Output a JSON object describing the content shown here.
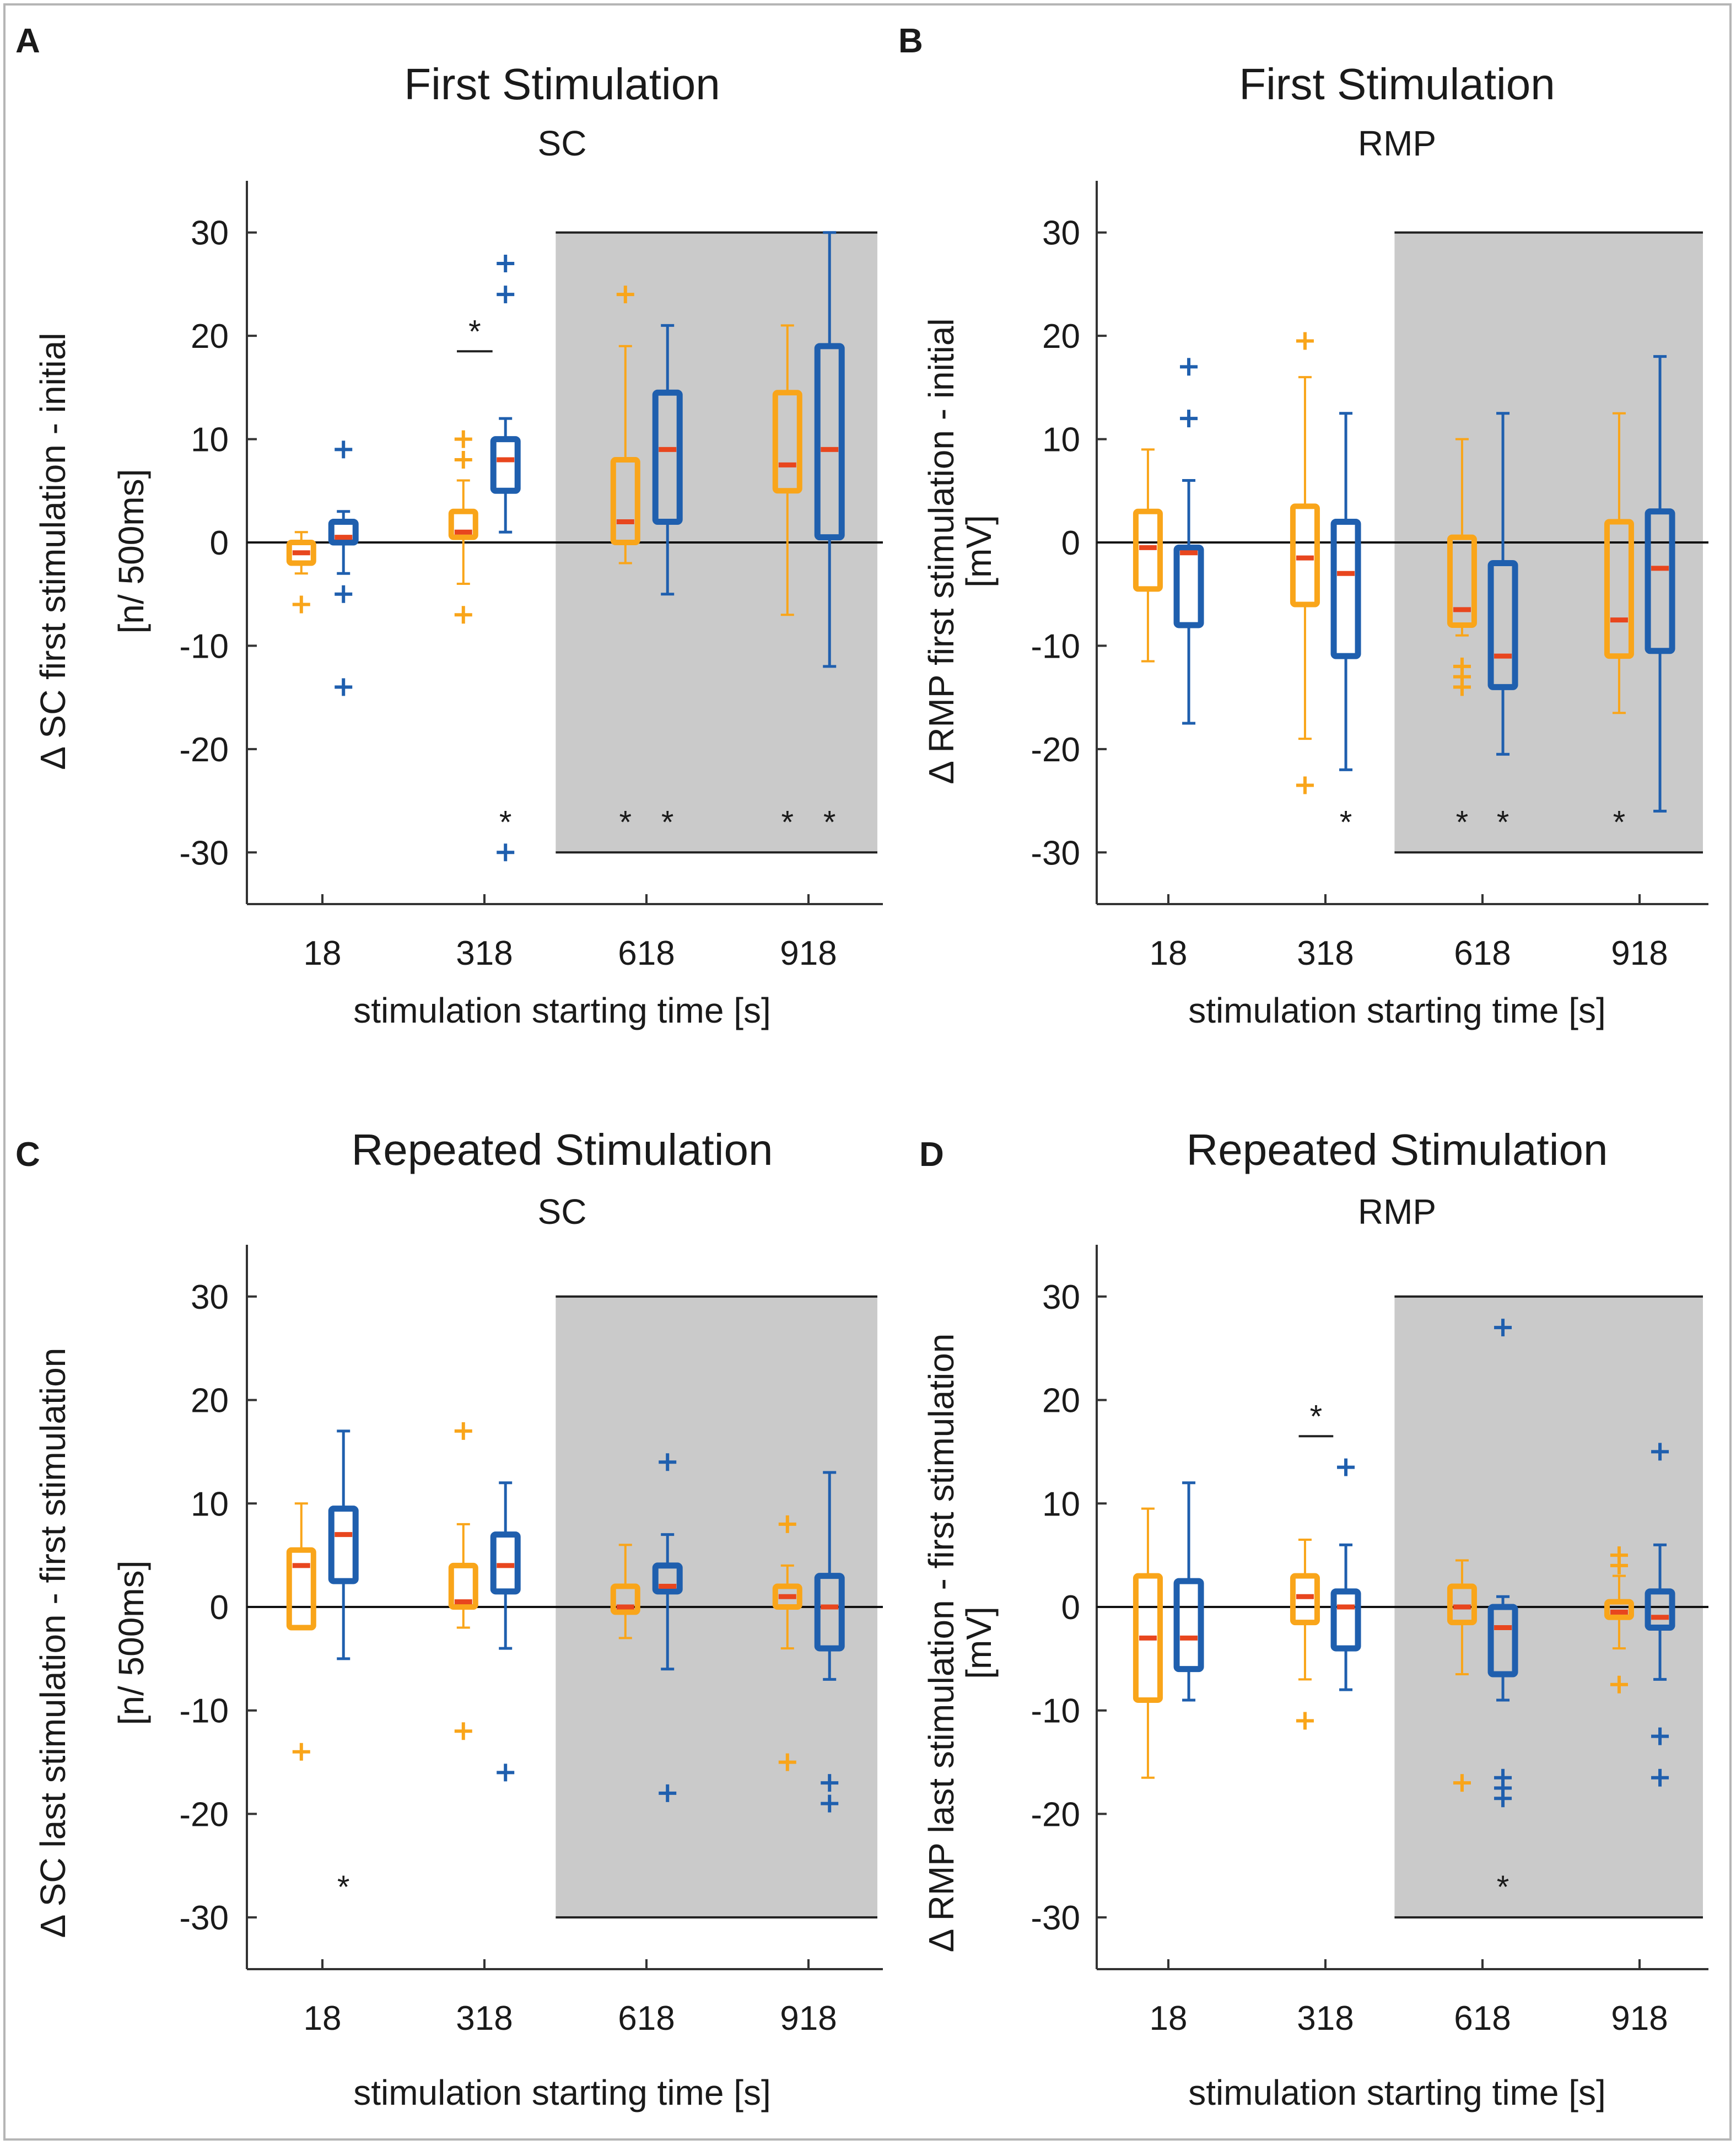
{
  "colors": {
    "orange": "#F9A51A",
    "blue": "#1F5FAE",
    "median": "#E8461E",
    "shade": "#CACACA",
    "axis": "#333333",
    "text": "#1a1a1a"
  },
  "chart_data": [
    {
      "panel": "A",
      "type": "box",
      "title": "First Stimulation",
      "subtitle": "SC",
      "ylabel": "Δ SC first stimulation - initial",
      "ylabel2": "[n/ 500ms]",
      "xlabel": "stimulation starting time [s]",
      "categories": [
        "18",
        "318",
        "618",
        "918"
      ],
      "yticks": [
        30,
        20,
        10,
        0,
        -10,
        -20,
        -30
      ],
      "ylim": [
        -35,
        35
      ],
      "shaded_from_category": "618",
      "series": [
        {
          "name": "orange",
          "boxes": [
            {
              "q1": -2,
              "median": -1,
              "q3": 0,
              "whisker_low": -3,
              "whisker_high": 1,
              "outliers": [
                -6
              ]
            },
            {
              "q1": 0.5,
              "median": 1,
              "q3": 3,
              "whisker_low": -4,
              "whisker_high": 6,
              "outliers": [
                8,
                10,
                -7
              ]
            },
            {
              "q1": 0,
              "median": 2,
              "q3": 8,
              "whisker_low": -2,
              "whisker_high": 19,
              "outliers": [
                24
              ]
            },
            {
              "q1": 5,
              "median": 7.5,
              "q3": 14.5,
              "whisker_low": -7,
              "whisker_high": 21,
              "outliers": []
            }
          ]
        },
        {
          "name": "blue",
          "boxes": [
            {
              "q1": 0,
              "median": 0.5,
              "q3": 2,
              "whisker_low": -3,
              "whisker_high": 3,
              "outliers": [
                9,
                -5,
                -14
              ]
            },
            {
              "q1": 5,
              "median": 8,
              "q3": 10,
              "whisker_low": 1,
              "whisker_high": 12,
              "outliers": [
                27,
                24,
                -30
              ]
            },
            {
              "q1": 2,
              "median": 9,
              "q3": 14.5,
              "whisker_low": -5,
              "whisker_high": 21,
              "outliers": []
            },
            {
              "q1": 0.5,
              "median": 9,
              "q3": 19,
              "whisker_low": -12,
              "whisker_high": 30,
              "outliers": []
            }
          ]
        }
      ],
      "significance": [
        {
          "label": "*",
          "type": "bracket",
          "category": "318",
          "y": 18.5
        },
        {
          "label": "*",
          "category": "318",
          "series": "blue",
          "y": -26
        },
        {
          "label": "*",
          "category": "618",
          "series": "orange",
          "y": -26
        },
        {
          "label": "*",
          "category": "618",
          "series": "blue",
          "y": -26
        },
        {
          "label": "*",
          "category": "918",
          "series": "orange",
          "y": -26
        },
        {
          "label": "*",
          "category": "918",
          "series": "blue",
          "y": -26
        }
      ]
    },
    {
      "panel": "B",
      "type": "box",
      "title": "First Stimulation",
      "subtitle": "RMP",
      "ylabel": "Δ RMP first stimulation - initial",
      "ylabel2": "[mV]",
      "xlabel": "stimulation starting time [s]",
      "categories": [
        "18",
        "318",
        "618",
        "918"
      ],
      "yticks": [
        30,
        20,
        10,
        0,
        -10,
        -20,
        -30
      ],
      "ylim": [
        -35,
        35
      ],
      "shaded_from_category": "618",
      "series": [
        {
          "name": "orange",
          "boxes": [
            {
              "q1": -4.5,
              "median": -0.5,
              "q3": 3,
              "whisker_low": -11.5,
              "whisker_high": 9,
              "outliers": []
            },
            {
              "q1": -6,
              "median": -1.5,
              "q3": 3.5,
              "whisker_low": -19,
              "whisker_high": 16,
              "outliers": [
                19.5,
                -23.5
              ]
            },
            {
              "q1": -8,
              "median": -6.5,
              "q3": 0.5,
              "whisker_low": -9,
              "whisker_high": 10,
              "outliers": [
                -12,
                -13,
                -14
              ]
            },
            {
              "q1": -11,
              "median": -7.5,
              "q3": 2,
              "whisker_low": -16.5,
              "whisker_high": 12.5,
              "outliers": []
            }
          ]
        },
        {
          "name": "blue",
          "boxes": [
            {
              "q1": -8,
              "median": -1,
              "q3": -0.5,
              "whisker_low": -17.5,
              "whisker_high": 6,
              "outliers": [
                17,
                12
              ]
            },
            {
              "q1": -11,
              "median": -3,
              "q3": 2,
              "whisker_low": -22,
              "whisker_high": 12.5,
              "outliers": []
            },
            {
              "q1": -14,
              "median": -11,
              "q3": -2,
              "whisker_low": -20.5,
              "whisker_high": 12.5,
              "outliers": []
            },
            {
              "q1": -10.5,
              "median": -2.5,
              "q3": 3,
              "whisker_low": -26,
              "whisker_high": 18,
              "outliers": []
            }
          ]
        }
      ],
      "significance": [
        {
          "label": "*",
          "category": "318",
          "series": "blue",
          "y": -26
        },
        {
          "label": "*",
          "category": "618",
          "series": "orange",
          "y": -26
        },
        {
          "label": "*",
          "category": "618",
          "series": "blue",
          "y": -26
        },
        {
          "label": "*",
          "category": "918",
          "series": "orange",
          "y": -26
        }
      ]
    },
    {
      "panel": "C",
      "type": "box",
      "title": "Repeated Stimulation",
      "subtitle": "SC",
      "ylabel": "Δ SC last stimulation - first stimulation",
      "ylabel2": "[n/ 500ms]",
      "xlabel": "stimulation starting time [s]",
      "categories": [
        "18",
        "318",
        "618",
        "918"
      ],
      "yticks": [
        30,
        20,
        10,
        0,
        -10,
        -20,
        -30
      ],
      "ylim": [
        -35,
        35
      ],
      "shaded_from_category": "618",
      "series": [
        {
          "name": "orange",
          "boxes": [
            {
              "q1": -2,
              "median": 4,
              "q3": 5.5,
              "whisker_low": -2,
              "whisker_high": 10,
              "outliers": [
                -14
              ]
            },
            {
              "q1": 0,
              "median": 0.5,
              "q3": 4,
              "whisker_low": -2,
              "whisker_high": 8,
              "outliers": [
                17,
                -12
              ]
            },
            {
              "q1": -0.5,
              "median": 0,
              "q3": 2,
              "whisker_low": -3,
              "whisker_high": 6,
              "outliers": []
            },
            {
              "q1": 0,
              "median": 1,
              "q3": 2,
              "whisker_low": -4,
              "whisker_high": 4,
              "outliers": [
                8,
                -15
              ]
            }
          ]
        },
        {
          "name": "blue",
          "boxes": [
            {
              "q1": 2.5,
              "median": 7,
              "q3": 9.5,
              "whisker_low": -5,
              "whisker_high": 17,
              "outliers": []
            },
            {
              "q1": 1.5,
              "median": 4,
              "q3": 7,
              "whisker_low": -4,
              "whisker_high": 12,
              "outliers": [
                -16
              ]
            },
            {
              "q1": 1.5,
              "median": 2,
              "q3": 4,
              "whisker_low": -6,
              "whisker_high": 7,
              "outliers": [
                14,
                -18
              ]
            },
            {
              "q1": -4,
              "median": 0,
              "q3": 3,
              "whisker_low": -7,
              "whisker_high": 13,
              "outliers": [
                -17,
                -19
              ]
            }
          ]
        }
      ],
      "significance": [
        {
          "label": "*",
          "category": "18",
          "series": "blue",
          "y": -26
        }
      ]
    },
    {
      "panel": "D",
      "type": "box",
      "title": "Repeated Stimulation",
      "subtitle": "RMP",
      "ylabel": "Δ RMP last stimulation - first stimulation",
      "ylabel2": "[mV]",
      "xlabel": "stimulation starting time [s]",
      "categories": [
        "18",
        "318",
        "618",
        "918"
      ],
      "yticks": [
        30,
        20,
        10,
        0,
        -10,
        -20,
        -30
      ],
      "ylim": [
        -35,
        35
      ],
      "shaded_from_category": "618",
      "series": [
        {
          "name": "orange",
          "boxes": [
            {
              "q1": -9,
              "median": -3,
              "q3": 3,
              "whisker_low": -16.5,
              "whisker_high": 9.5,
              "outliers": []
            },
            {
              "q1": -1.5,
              "median": 1,
              "q3": 3,
              "whisker_low": -7,
              "whisker_high": 6.5,
              "outliers": [
                -11
              ]
            },
            {
              "q1": -1.5,
              "median": 0,
              "q3": 2,
              "whisker_low": -6.5,
              "whisker_high": 4.5,
              "outliers": [
                -17
              ]
            },
            {
              "q1": -1,
              "median": -0.5,
              "q3": 0.5,
              "whisker_low": -4,
              "whisker_high": 3,
              "outliers": [
                5,
                4,
                -7.5
              ]
            }
          ]
        },
        {
          "name": "blue",
          "boxes": [
            {
              "q1": -6,
              "median": -3,
              "q3": 2.5,
              "whisker_low": -9,
              "whisker_high": 12,
              "outliers": []
            },
            {
              "q1": -4,
              "median": 0,
              "q3": 1.5,
              "whisker_low": -8,
              "whisker_high": 6,
              "outliers": [
                13.5
              ]
            },
            {
              "q1": -6.5,
              "median": -2,
              "q3": 0,
              "whisker_low": -9,
              "whisker_high": 1,
              "outliers": [
                27,
                -16.5,
                -17.5,
                -18.5
              ]
            },
            {
              "q1": -2,
              "median": -1,
              "q3": 1.5,
              "whisker_low": -7,
              "whisker_high": 6,
              "outliers": [
                15,
                -12.5,
                -16.5
              ]
            }
          ]
        }
      ],
      "significance": [
        {
          "label": "*",
          "type": "bracket",
          "category": "318",
          "y": 16.5
        },
        {
          "label": "*",
          "category": "618",
          "series": "blue",
          "y": -26
        }
      ]
    }
  ]
}
